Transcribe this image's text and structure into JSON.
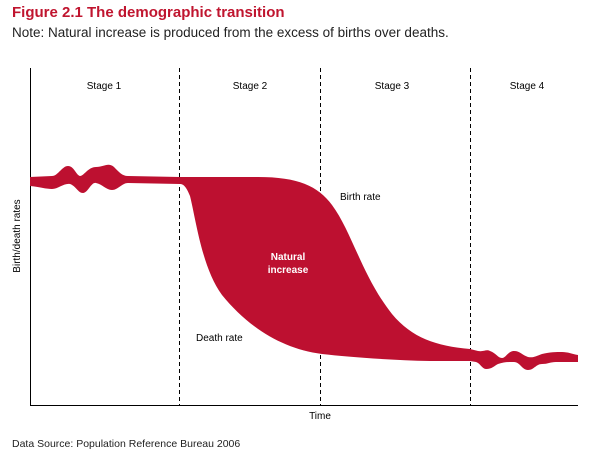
{
  "figure": {
    "title": "Figure 2.1 The demographic transition",
    "note": "Note: Natural increase is produced from the excess of births over deaths.",
    "source": "Data Source: Population Reference Bureau 2006"
  },
  "diagram": {
    "stages": [
      "Stage 1",
      "Stage 2",
      "Stage 3",
      "Stage 4"
    ],
    "y_axis_label": "Birth/death rates",
    "x_axis_label": "Time",
    "birth_rate_label": "Birth rate",
    "death_rate_label": "Death rate",
    "natural_increase_label_line1": "Natural",
    "natural_increase_label_line2": "increase",
    "fill_color": "#bd1030",
    "title_color": "#c0152f"
  }
}
